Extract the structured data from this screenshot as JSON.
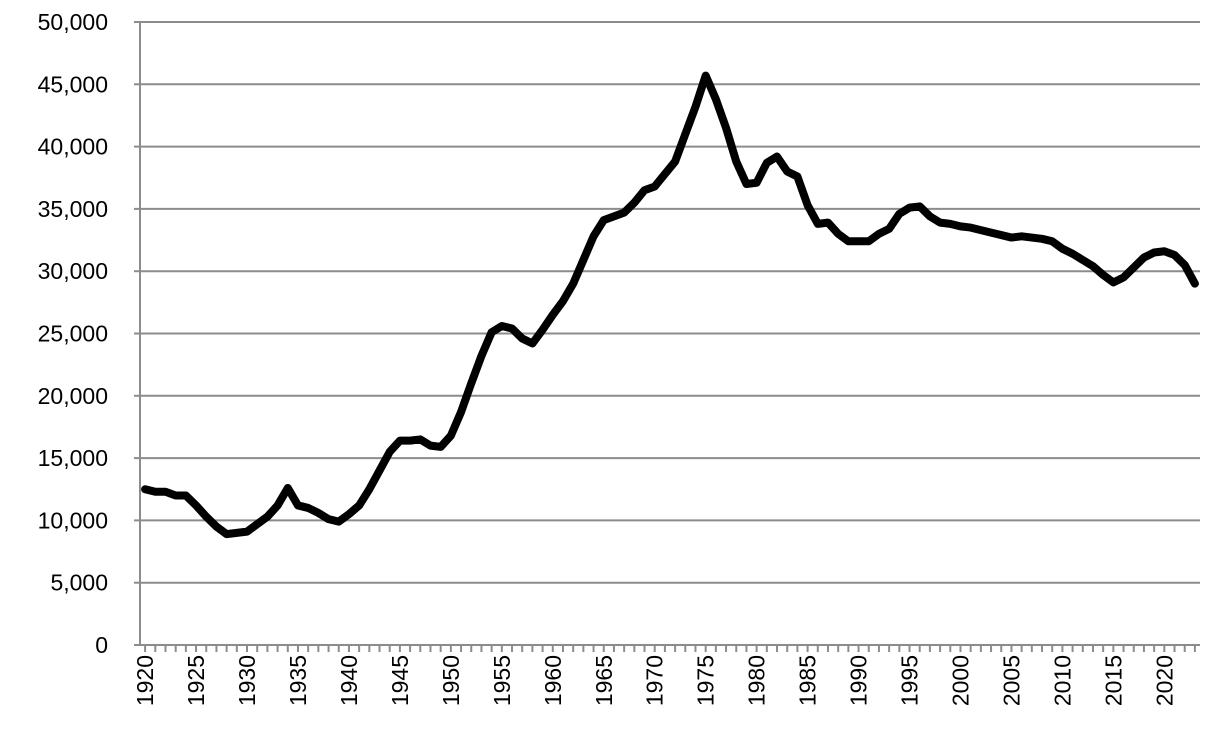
{
  "chart_data": {
    "type": "line",
    "color": "#000000",
    "grid": true,
    "x": [
      1920,
      1921,
      1922,
      1923,
      1924,
      1925,
      1926,
      1927,
      1928,
      1929,
      1930,
      1931,
      1932,
      1933,
      1934,
      1935,
      1936,
      1937,
      1938,
      1939,
      1940,
      1941,
      1942,
      1943,
      1944,
      1945,
      1946,
      1947,
      1948,
      1949,
      1950,
      1951,
      1952,
      1953,
      1954,
      1955,
      1956,
      1957,
      1958,
      1959,
      1960,
      1961,
      1962,
      1963,
      1964,
      1965,
      1966,
      1967,
      1968,
      1969,
      1970,
      1971,
      1972,
      1973,
      1974,
      1975,
      1976,
      1977,
      1978,
      1979,
      1980,
      1981,
      1982,
      1983,
      1984,
      1985,
      1986,
      1987,
      1988,
      1989,
      1990,
      1991,
      1992,
      1993,
      1994,
      1995,
      1996,
      1997,
      1998,
      1999,
      2000,
      2001,
      2002,
      2003,
      2004,
      2005,
      2006,
      2007,
      2008,
      2009,
      2010,
      2011,
      2012,
      2013,
      2014,
      2015,
      2016,
      2017,
      2018,
      2019,
      2020,
      2021,
      2022,
      2023
    ],
    "values": [
      12500,
      12300,
      12300,
      12000,
      12000,
      11200,
      10300,
      9500,
      8900,
      9000,
      9100,
      9700,
      10300,
      11200,
      12600,
      11200,
      11000,
      10600,
      10100,
      9900,
      10500,
      11200,
      12500,
      14000,
      15500,
      16400,
      16400,
      16500,
      16000,
      15900,
      16800,
      18700,
      21000,
      23200,
      25100,
      25600,
      25400,
      24600,
      24200,
      25300,
      26500,
      27600,
      29000,
      30900,
      32800,
      34100,
      34400,
      34700,
      35500,
      36500,
      36800,
      37800,
      38800,
      41000,
      43200,
      45700,
      43800,
      41500,
      38800,
      37000,
      37100,
      38700,
      39200,
      38000,
      37600,
      35300,
      33800,
      33900,
      33000,
      32400,
      32400,
      32400,
      33000,
      33400,
      34600,
      35100,
      35200,
      34400,
      33900,
      33800,
      33600,
      33500,
      33300,
      33100,
      32900,
      32700,
      32800,
      32700,
      32600,
      32400,
      31800,
      31400,
      30900,
      30400,
      29700,
      29100,
      29500,
      30300,
      31100,
      31500,
      31600,
      31300,
      30500,
      29000
    ],
    "xlim": [
      1919.5,
      2023.5
    ],
    "xticks": [
      1920,
      1925,
      1930,
      1935,
      1940,
      1945,
      1950,
      1955,
      1960,
      1965,
      1970,
      1975,
      1980,
      1985,
      1990,
      1995,
      2000,
      2005,
      2010,
      2015,
      2020
    ],
    "ylim": [
      0,
      50000
    ],
    "yticks": [
      0,
      {
        "value": 5000,
        "label": "5,000"
      },
      {
        "value": 10000,
        "label": "10,000"
      },
      {
        "value": 15000,
        "label": "15,000"
      },
      {
        "value": 20000,
        "label": "20,000"
      },
      {
        "value": 25000,
        "label": "25,000"
      },
      {
        "value": 30000,
        "label": "30,000"
      },
      {
        "value": 35000,
        "label": "35,000"
      },
      {
        "value": 40000,
        "label": "40,000"
      },
      {
        "value": 45000,
        "label": "45,000"
      },
      {
        "value": 50000,
        "label": "50,000"
      }
    ]
  }
}
